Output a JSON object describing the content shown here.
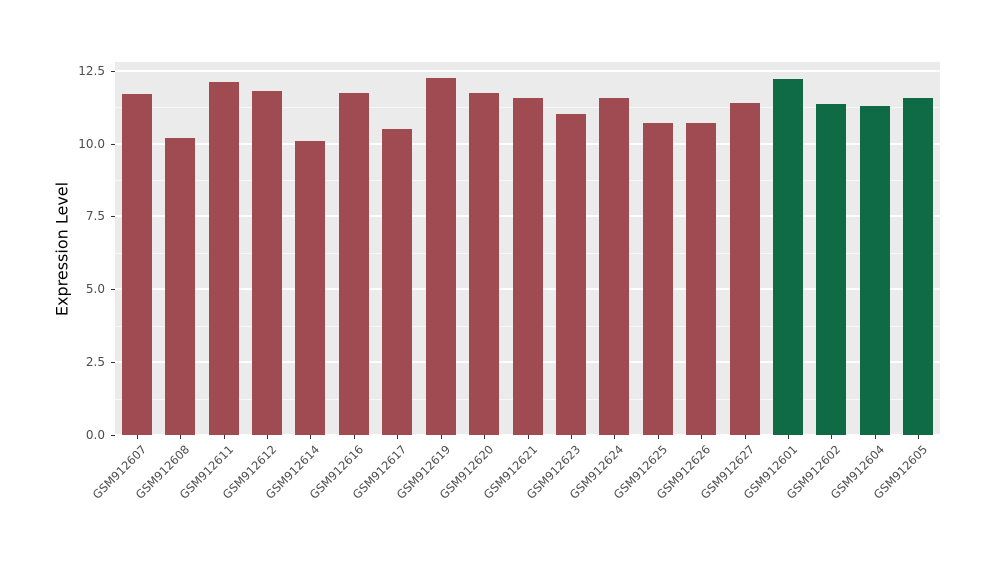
{
  "chart_data": {
    "type": "bar",
    "title": "",
    "xlabel": "",
    "ylabel": "Expression Level",
    "categories": [
      "GSM912607",
      "GSM912608",
      "GSM912611",
      "GSM912612",
      "GSM912614",
      "GSM912616",
      "GSM912617",
      "GSM912619",
      "GSM912620",
      "GSM912621",
      "GSM912623",
      "GSM912624",
      "GSM912625",
      "GSM912626",
      "GSM912627",
      "GSM912601",
      "GSM912602",
      "GSM912604",
      "GSM912605"
    ],
    "values": [
      11.7,
      10.2,
      12.1,
      11.8,
      10.1,
      11.75,
      10.5,
      12.25,
      11.75,
      11.55,
      11.0,
      11.55,
      10.7,
      10.7,
      11.4,
      12.2,
      11.35,
      11.3,
      11.55
    ],
    "bar_colors": [
      "#A04A52",
      "#A04A52",
      "#A04A52",
      "#A04A52",
      "#A04A52",
      "#A04A52",
      "#A04A52",
      "#A04A52",
      "#A04A52",
      "#A04A52",
      "#A04A52",
      "#A04A52",
      "#A04A52",
      "#A04A52",
      "#A04A52",
      "#0E6B45",
      "#0E6B45",
      "#0E6B45",
      "#0E6B45"
    ],
    "group_colors": {
      "group1": "#A04A52",
      "group2": "#0E6B45"
    },
    "yticks": [
      0.0,
      2.5,
      5.0,
      7.5,
      10.0,
      12.5
    ],
    "ytick_labels": [
      "0.0",
      "2.5",
      "5.0",
      "7.5",
      "10.0",
      "12.5"
    ],
    "ylim": [
      0,
      12.8
    ],
    "grid": "on",
    "legend": "none",
    "panel_background": "#EBEBEB",
    "gridline_color": "#FFFFFF",
    "axis_text_color": "#4D4D4D"
  }
}
